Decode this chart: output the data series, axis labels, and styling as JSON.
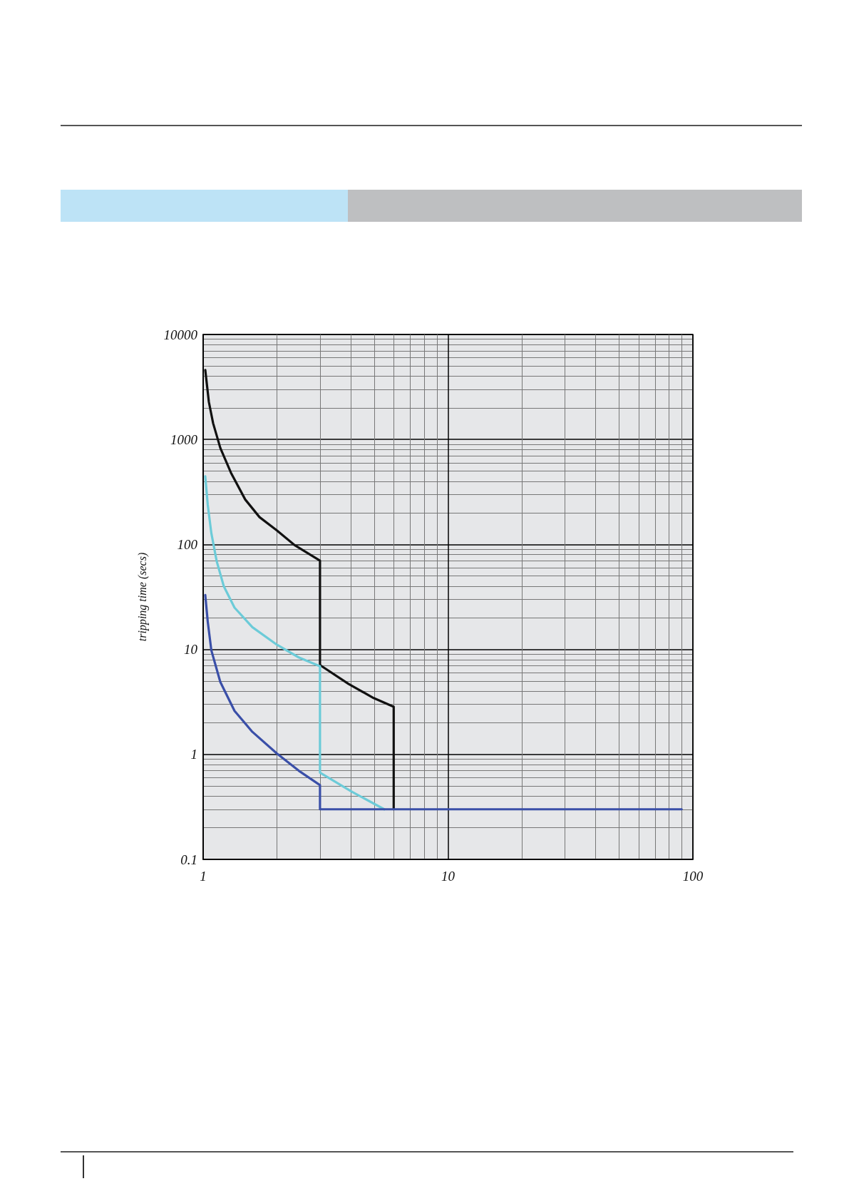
{
  "chart_data": {
    "type": "line",
    "ylabel": "tripping time (secs)",
    "log": "xy",
    "grid": true,
    "marker": "none",
    "line_style": "solid",
    "xlim": [
      1,
      100
    ],
    "ylim": [
      0.1,
      10000
    ],
    "xticks": [
      1,
      10,
      100
    ],
    "yticks": [
      0.1,
      1,
      10,
      100,
      1000,
      10000
    ],
    "series": [
      {
        "color": "#111111",
        "x": [
          1.02,
          1.055,
          1.098,
          1.175,
          1.299,
          1.485,
          1.699,
          2,
          2.37,
          3,
          3,
          3.92,
          4.97,
          6,
          6
        ],
        "values": [
          4590,
          2280,
          1430,
          830,
          481,
          268,
          182,
          136,
          98,
          70,
          7.1,
          4.7,
          3.44,
          2.84,
          0.3
        ]
      },
      {
        "color": "#6ccbd8",
        "x": [
          1.02,
          1.044,
          1.08,
          1.136,
          1.214,
          1.343,
          1.588,
          2,
          2.455,
          3,
          3,
          4.06,
          5.49
        ],
        "values": [
          446,
          239,
          128,
          69,
          40,
          25,
          16.3,
          11.1,
          8.4,
          6.9,
          0.67,
          0.44,
          0.3
        ]
      },
      {
        "color": "#3a4fa8",
        "x": [
          1.02,
          1.044,
          1.08,
          1.175,
          1.343,
          1.588,
          2,
          2.455,
          3,
          3,
          90
        ],
        "values": [
          33,
          18.4,
          9.8,
          4.9,
          2.6,
          1.64,
          1.02,
          0.7,
          0.51,
          0.3,
          0.3
        ]
      }
    ]
  }
}
